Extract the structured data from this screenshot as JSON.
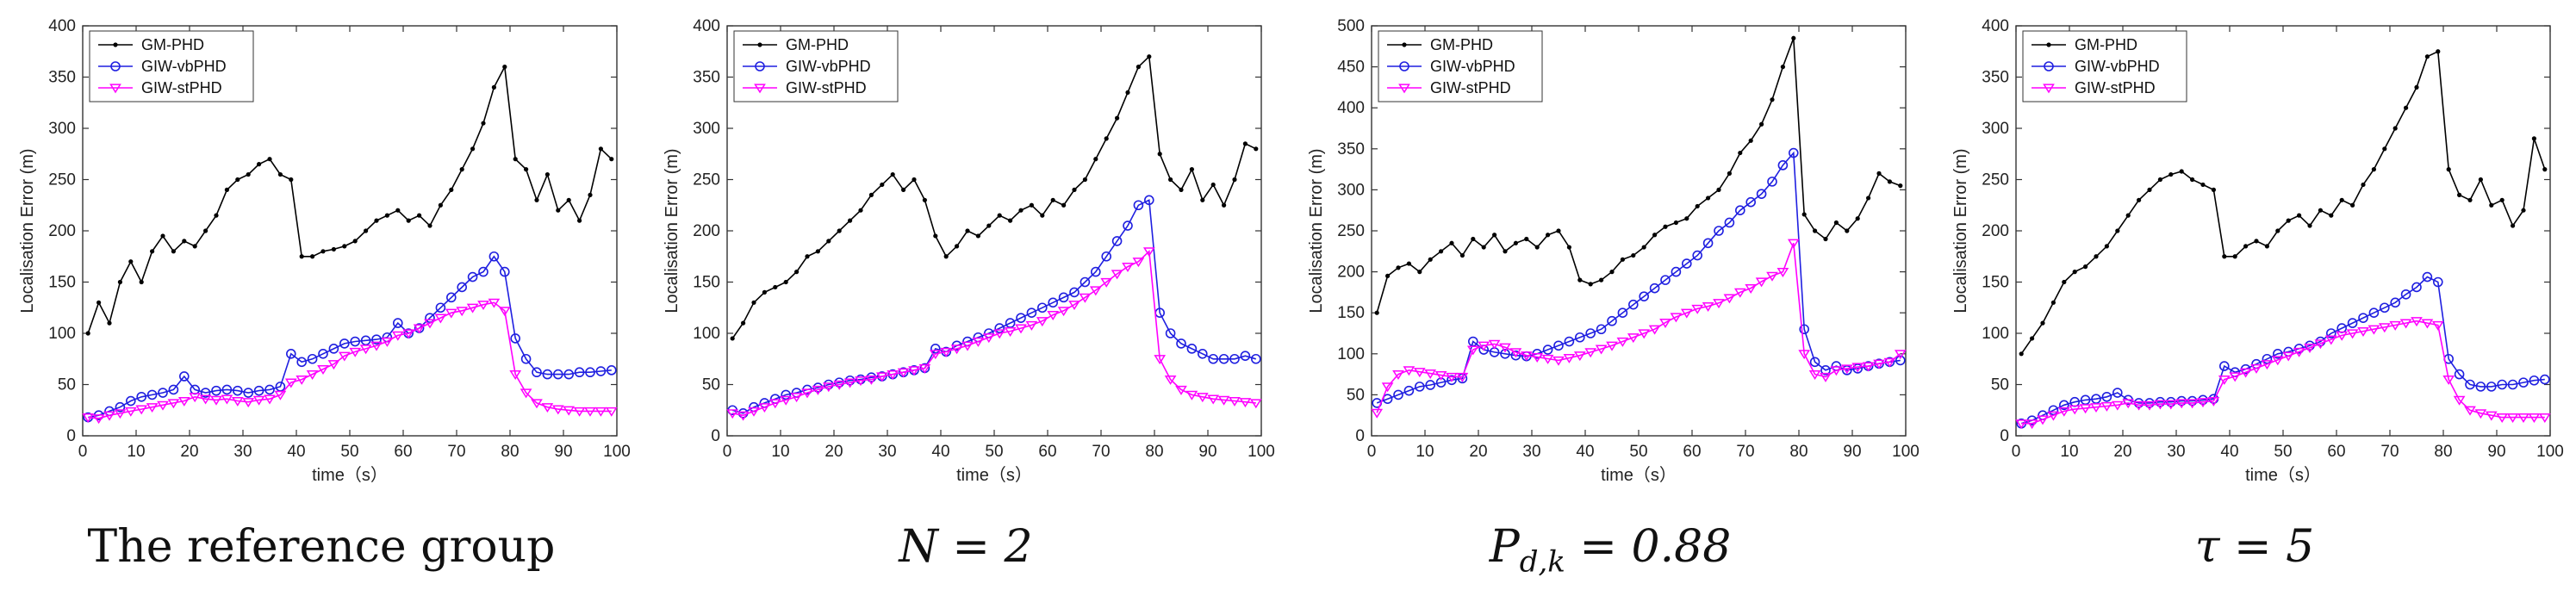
{
  "chart_data": [
    {
      "type": "line",
      "caption": "The reference group",
      "xlabel": "time（s）",
      "ylabel": "Localisation Error (m)",
      "xlim": [
        0,
        100
      ],
      "ylim": [
        0,
        400
      ],
      "xticks": [
        "0",
        "10",
        "20",
        "30",
        "40",
        "50",
        "60",
        "70",
        "80",
        "90",
        "100"
      ],
      "yticks": [
        "0",
        "50",
        "100",
        "150",
        "200",
        "250",
        "300",
        "350",
        "400"
      ],
      "legend": "top-left",
      "x": [
        1,
        3,
        5,
        7,
        9,
        11,
        13,
        15,
        17,
        19,
        21,
        23,
        25,
        27,
        29,
        31,
        33,
        35,
        37,
        39,
        41,
        43,
        45,
        47,
        49,
        51,
        53,
        55,
        57,
        59,
        61,
        63,
        65,
        67,
        69,
        71,
        73,
        75,
        77,
        79,
        81,
        83,
        85,
        87,
        89,
        91,
        93,
        95,
        97,
        99
      ],
      "series": [
        {
          "name": "GM-PHD",
          "color": "#000000",
          "marker": "dot",
          "values": [
            100,
            130,
            110,
            150,
            170,
            150,
            180,
            195,
            180,
            190,
            185,
            200,
            215,
            240,
            250,
            255,
            265,
            270,
            255,
            250,
            175,
            175,
            180,
            182,
            185,
            190,
            200,
            210,
            215,
            220,
            210,
            215,
            205,
            225,
            240,
            260,
            280,
            305,
            340,
            360,
            270,
            260,
            230,
            255,
            220,
            230,
            210,
            235,
            280,
            270
          ]
        },
        {
          "name": "GIW-vbPHD",
          "color": "#1f1fe0",
          "marker": "circle",
          "values": [
            18,
            20,
            24,
            28,
            34,
            38,
            40,
            42,
            45,
            58,
            45,
            42,
            44,
            45,
            44,
            42,
            44,
            45,
            48,
            80,
            72,
            75,
            80,
            85,
            90,
            92,
            93,
            94,
            96,
            110,
            100,
            105,
            115,
            125,
            135,
            145,
            155,
            160,
            175,
            160,
            95,
            75,
            62,
            60,
            60,
            60,
            62,
            62,
            63,
            64
          ]
        },
        {
          "name": "GIW-stPHD",
          "color": "#ff00ff",
          "marker": "triangle-down",
          "values": [
            18,
            17,
            20,
            22,
            24,
            26,
            28,
            30,
            32,
            34,
            38,
            36,
            35,
            36,
            34,
            33,
            35,
            36,
            40,
            52,
            55,
            60,
            65,
            70,
            78,
            82,
            85,
            88,
            92,
            98,
            100,
            105,
            110,
            115,
            120,
            122,
            125,
            128,
            130,
            122,
            60,
            42,
            32,
            28,
            26,
            25,
            24,
            24,
            24,
            24
          ]
        }
      ]
    },
    {
      "type": "line",
      "caption": "N = 2",
      "xlabel": "time（s）",
      "ylabel": "Localisation Error (m)",
      "xlim": [
        0,
        100
      ],
      "ylim": [
        0,
        400
      ],
      "xticks": [
        "0",
        "10",
        "20",
        "30",
        "40",
        "50",
        "60",
        "70",
        "80",
        "90",
        "100"
      ],
      "yticks": [
        "0",
        "50",
        "100",
        "150",
        "200",
        "250",
        "300",
        "350",
        "400"
      ],
      "legend": "top-left",
      "x": [
        1,
        3,
        5,
        7,
        9,
        11,
        13,
        15,
        17,
        19,
        21,
        23,
        25,
        27,
        29,
        31,
        33,
        35,
        37,
        39,
        41,
        43,
        45,
        47,
        49,
        51,
        53,
        55,
        57,
        59,
        61,
        63,
        65,
        67,
        69,
        71,
        73,
        75,
        77,
        79,
        81,
        83,
        85,
        87,
        89,
        91,
        93,
        95,
        97,
        99
      ],
      "series": [
        {
          "name": "GM-PHD",
          "color": "#000000",
          "marker": "dot",
          "values": [
            95,
            110,
            130,
            140,
            145,
            150,
            160,
            175,
            180,
            190,
            200,
            210,
            220,
            235,
            245,
            255,
            240,
            250,
            230,
            195,
            175,
            185,
            200,
            195,
            205,
            215,
            210,
            220,
            225,
            215,
            230,
            225,
            240,
            250,
            270,
            290,
            310,
            335,
            360,
            370,
            275,
            250,
            240,
            260,
            230,
            245,
            225,
            250,
            285,
            280
          ]
        },
        {
          "name": "GIW-vbPHD",
          "color": "#1f1fe0",
          "marker": "circle",
          "values": [
            25,
            22,
            28,
            32,
            36,
            40,
            42,
            45,
            47,
            50,
            52,
            54,
            55,
            57,
            58,
            60,
            62,
            64,
            66,
            85,
            82,
            88,
            92,
            96,
            100,
            105,
            110,
            115,
            120,
            125,
            130,
            135,
            140,
            150,
            160,
            175,
            190,
            205,
            225,
            230,
            120,
            100,
            90,
            85,
            80,
            75,
            75,
            75,
            78,
            75
          ]
        },
        {
          "name": "GIW-stPHD",
          "color": "#ff00ff",
          "marker": "triangle-down",
          "values": [
            22,
            20,
            24,
            28,
            32,
            35,
            38,
            42,
            45,
            48,
            50,
            52,
            54,
            55,
            58,
            60,
            62,
            64,
            66,
            80,
            82,
            85,
            88,
            92,
            96,
            100,
            102,
            105,
            108,
            112,
            118,
            122,
            128,
            135,
            142,
            150,
            158,
            165,
            170,
            180,
            75,
            55,
            45,
            40,
            38,
            36,
            35,
            34,
            33,
            32
          ]
        }
      ]
    },
    {
      "type": "line",
      "caption": "P_{d,k} = 0.88",
      "xlabel": "time（s）",
      "ylabel": "Localisation Error (m)",
      "xlim": [
        0,
        100
      ],
      "ylim": [
        0,
        500
      ],
      "xticks": [
        "0",
        "10",
        "20",
        "30",
        "40",
        "50",
        "60",
        "70",
        "80",
        "90",
        "100"
      ],
      "yticks": [
        "0",
        "50",
        "100",
        "150",
        "200",
        "250",
        "300",
        "350",
        "400",
        "450",
        "500"
      ],
      "legend": "top-left",
      "x": [
        1,
        3,
        5,
        7,
        9,
        11,
        13,
        15,
        17,
        19,
        21,
        23,
        25,
        27,
        29,
        31,
        33,
        35,
        37,
        39,
        41,
        43,
        45,
        47,
        49,
        51,
        53,
        55,
        57,
        59,
        61,
        63,
        65,
        67,
        69,
        71,
        73,
        75,
        77,
        79,
        81,
        83,
        85,
        87,
        89,
        91,
        93,
        95,
        97,
        99
      ],
      "series": [
        {
          "name": "GM-PHD",
          "color": "#000000",
          "marker": "dot",
          "values": [
            150,
            195,
            205,
            210,
            200,
            215,
            225,
            235,
            220,
            240,
            230,
            245,
            225,
            235,
            240,
            230,
            245,
            250,
            230,
            190,
            185,
            190,
            200,
            215,
            220,
            230,
            245,
            255,
            260,
            265,
            280,
            290,
            300,
            320,
            345,
            360,
            380,
            410,
            450,
            485,
            270,
            250,
            240,
            260,
            250,
            265,
            290,
            320,
            310,
            305
          ]
        },
        {
          "name": "GIW-vbPHD",
          "color": "#1f1fe0",
          "marker": "circle",
          "values": [
            40,
            45,
            50,
            55,
            60,
            62,
            65,
            68,
            70,
            115,
            105,
            102,
            100,
            98,
            97,
            100,
            105,
            110,
            115,
            120,
            125,
            130,
            140,
            150,
            160,
            170,
            180,
            190,
            200,
            210,
            220,
            235,
            250,
            260,
            275,
            285,
            295,
            310,
            330,
            345,
            130,
            90,
            80,
            85,
            80,
            82,
            85,
            88,
            90,
            92
          ]
        },
        {
          "name": "GIW-stPHD",
          "color": "#ff00ff",
          "marker": "triangle-down",
          "values": [
            28,
            60,
            75,
            80,
            78,
            76,
            74,
            72,
            72,
            105,
            110,
            112,
            108,
            102,
            98,
            96,
            94,
            92,
            95,
            98,
            102,
            106,
            110,
            115,
            120,
            125,
            130,
            138,
            145,
            150,
            155,
            158,
            162,
            168,
            175,
            180,
            188,
            195,
            200,
            235,
            100,
            75,
            72,
            80,
            82,
            84,
            85,
            88,
            90,
            100
          ]
        }
      ]
    },
    {
      "type": "line",
      "caption": "τ = 5",
      "xlabel": "time（s）",
      "ylabel": "Localisation Error (m)",
      "xlim": [
        0,
        100
      ],
      "ylim": [
        0,
        400
      ],
      "xticks": [
        "0",
        "10",
        "20",
        "30",
        "40",
        "50",
        "60",
        "70",
        "80",
        "90",
        "100"
      ],
      "yticks": [
        "0",
        "50",
        "100",
        "150",
        "200",
        "250",
        "300",
        "350",
        "400"
      ],
      "legend": "top-left",
      "x": [
        1,
        3,
        5,
        7,
        9,
        11,
        13,
        15,
        17,
        19,
        21,
        23,
        25,
        27,
        29,
        31,
        33,
        35,
        37,
        39,
        41,
        43,
        45,
        47,
        49,
        51,
        53,
        55,
        57,
        59,
        61,
        63,
        65,
        67,
        69,
        71,
        73,
        75,
        77,
        79,
        81,
        83,
        85,
        87,
        89,
        91,
        93,
        95,
        97,
        99
      ],
      "series": [
        {
          "name": "GM-PHD",
          "color": "#000000",
          "marker": "dot",
          "values": [
            80,
            95,
            110,
            130,
            150,
            160,
            165,
            175,
            185,
            200,
            215,
            230,
            240,
            250,
            255,
            258,
            250,
            245,
            240,
            175,
            175,
            185,
            190,
            185,
            200,
            210,
            215,
            205,
            220,
            215,
            230,
            225,
            245,
            260,
            280,
            300,
            320,
            340,
            370,
            375,
            260,
            235,
            230,
            250,
            225,
            230,
            205,
            220,
            290,
            260
          ]
        },
        {
          "name": "GIW-vbPHD",
          "color": "#1f1fe0",
          "marker": "circle",
          "values": [
            12,
            15,
            20,
            25,
            30,
            33,
            35,
            36,
            38,
            42,
            35,
            32,
            32,
            33,
            33,
            34,
            34,
            35,
            36,
            68,
            62,
            65,
            70,
            75,
            80,
            82,
            85,
            88,
            92,
            100,
            105,
            110,
            115,
            120,
            125,
            130,
            138,
            145,
            155,
            150,
            75,
            60,
            50,
            48,
            48,
            50,
            50,
            52,
            54,
            55
          ]
        },
        {
          "name": "GIW-stPHD",
          "color": "#ff00ff",
          "marker": "triangle-down",
          "values": [
            12,
            12,
            16,
            20,
            24,
            26,
            27,
            28,
            29,
            30,
            32,
            30,
            30,
            31,
            31,
            32,
            32,
            33,
            34,
            55,
            58,
            62,
            66,
            70,
            74,
            78,
            82,
            86,
            90,
            94,
            98,
            100,
            102,
            104,
            106,
            108,
            110,
            112,
            110,
            108,
            55,
            35,
            25,
            22,
            20,
            18,
            18,
            18,
            18,
            18
          ]
        }
      ]
    }
  ]
}
